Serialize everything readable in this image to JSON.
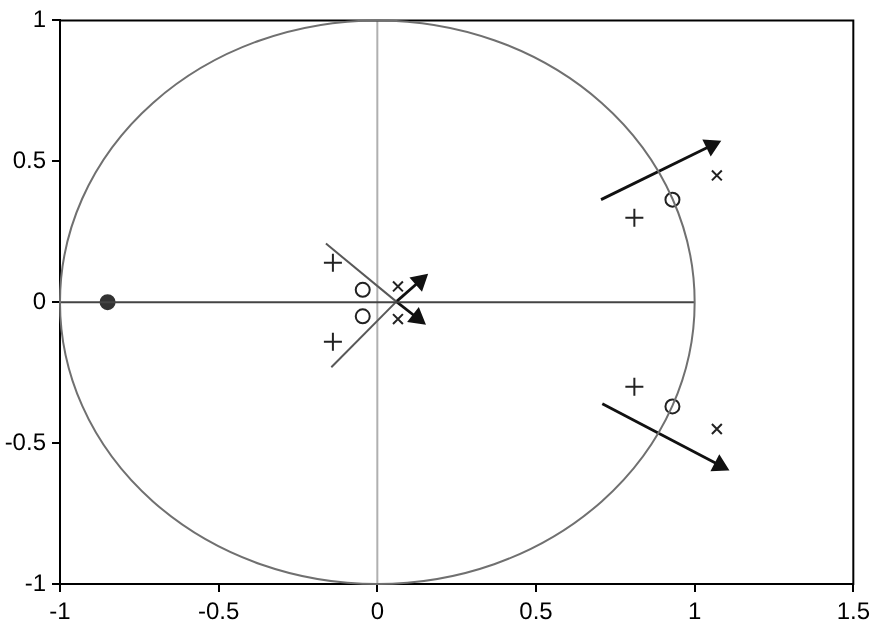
{
  "chart_data": {
    "type": "scatter",
    "xlim": [
      -1,
      1.5
    ],
    "ylim": [
      -1,
      1
    ],
    "xticks": [
      -1,
      -0.5,
      0,
      0.5,
      1,
      1.5
    ],
    "yticks": [
      -1,
      -0.5,
      0,
      0.5,
      1
    ],
    "grid": false,
    "legend": false,
    "ref_lines": [
      {
        "axis": "x",
        "value": 0,
        "color": "#b0b0b0"
      }
    ],
    "series": [
      {
        "type": "line",
        "color": "#444444",
        "marker": "none",
        "x": [
          -1,
          1
        ],
        "values": [
          0,
          0
        ]
      },
      {
        "type": "line",
        "color": "#585858",
        "marker": "none",
        "x": [
          -0.162,
          0.06
        ],
        "values": [
          0.208,
          0.002
        ]
      },
      {
        "type": "line",
        "color": "#585858",
        "marker": "none",
        "x": [
          -0.145,
          0.06
        ],
        "values": [
          -0.231,
          0.002
        ]
      },
      {
        "type": "line",
        "color": "#111111",
        "marker": "triangle",
        "x": [
          0.705,
          1.053
        ],
        "values": [
          0.364,
          0.556
        ]
      },
      {
        "type": "line",
        "color": "#111111",
        "marker": "triangle",
        "x": [
          0.709,
          1.079
        ],
        "values": [
          -0.36,
          -0.579
        ]
      },
      {
        "type": "line",
        "color": "#111111",
        "marker": "triangle",
        "x": [
          0.06,
          0.134
        ],
        "values": [
          0.002,
          0.075
        ]
      },
      {
        "type": "line",
        "color": "#111111",
        "marker": "triangle",
        "x": [
          0.06,
          0.126
        ],
        "values": [
          0.002,
          -0.056
        ]
      },
      {
        "type": "scatter",
        "color": "#333333",
        "marker": "dot",
        "x": [
          -0.85
        ],
        "values": [
          0
        ]
      },
      {
        "type": "scatter",
        "color": "#222222",
        "marker": "circle",
        "x": [
          -0.046,
          -0.046,
          0.93,
          0.93
        ],
        "values": [
          0.044,
          -0.05,
          0.364,
          -0.37
        ]
      },
      {
        "type": "scatter",
        "color": "#222222",
        "marker": "cross",
        "x": [
          -0.14,
          -0.14,
          0.81,
          0.81
        ],
        "values": [
          0.14,
          -0.14,
          0.3,
          -0.3
        ]
      },
      {
        "type": "scatter",
        "color": "#222222",
        "marker": "x",
        "x": [
          0.065,
          0.065,
          1.07,
          1.07
        ],
        "values": [
          0.056,
          -0.06,
          0.45,
          -0.45
        ]
      }
    ]
  }
}
